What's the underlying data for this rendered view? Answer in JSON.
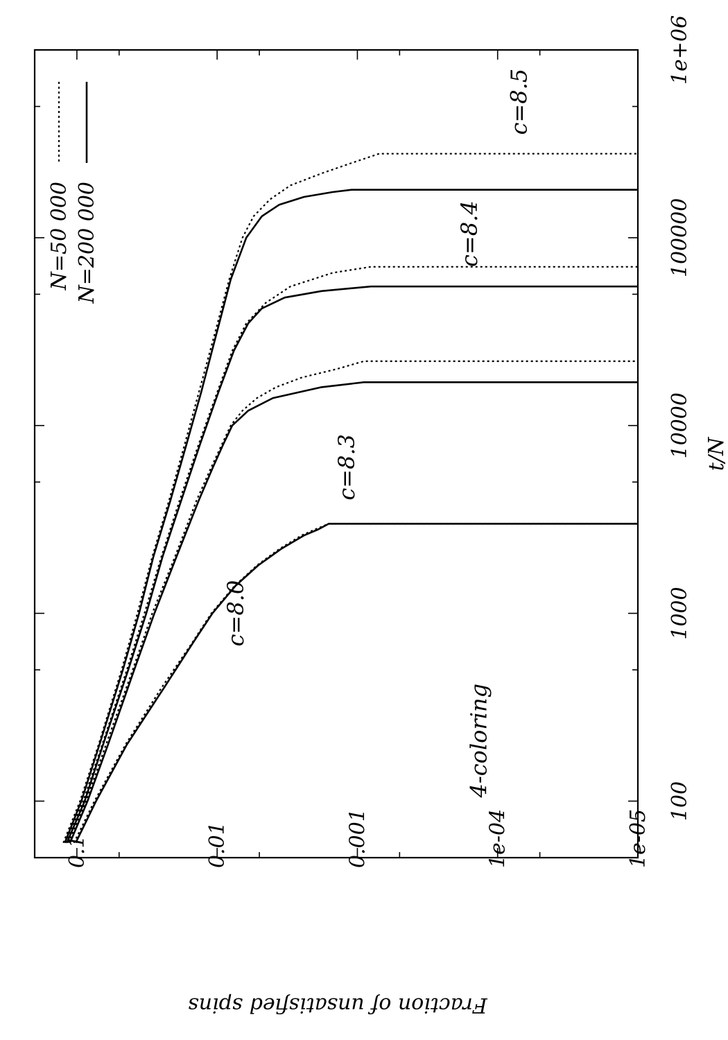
{
  "chart_data": {
    "type": "line",
    "title": "",
    "xlabel": "t/N",
    "ylabel": "Fraction of unsatisfied spins",
    "xscale": "log",
    "yscale": "log",
    "xlim": [
      50,
      1000000
    ],
    "ylim": [
      1e-05,
      0.2
    ],
    "x_ticks": [
      100,
      1000,
      10000,
      100000,
      1000000
    ],
    "x_tick_labels": [
      "100",
      "1000",
      "10000",
      "100000",
      "1e+06"
    ],
    "y_ticks": [
      0.1,
      0.01,
      0.001,
      0.0001,
      1e-05
    ],
    "y_tick_labels": [
      "0.1",
      "0.01",
      "0.001",
      "1e-04",
      "1e-05"
    ],
    "grid": false,
    "legend_position": "top-right",
    "legend": [
      {
        "label": "N=50 000",
        "style": "dotted"
      },
      {
        "label": "N=200 000",
        "style": "solid"
      }
    ],
    "annotations": [
      {
        "text": "4-coloring",
        "x": 210,
        "y": 0.00012
      },
      {
        "text": "c=8.0",
        "x": 1000,
        "y": 0.0065
      },
      {
        "text": "c=8.3",
        "x": 6000,
        "y": 0.00105
      },
      {
        "text": "c=8.4",
        "x": 105000,
        "y": 0.00014
      },
      {
        "text": "c=8.5",
        "x": 530000,
        "y": 6.2e-05
      }
    ],
    "series": [
      {
        "name": "c=8.0, N=50 000",
        "c": "8.0",
        "N": "50 000",
        "style": "dotted",
        "x": [
          60,
          100,
          200,
          400,
          700,
          1000,
          1400,
          1800,
          2200,
          2600,
          2800,
          3000,
          3000
        ],
        "y": [
          0.105,
          0.075,
          0.045,
          0.025,
          0.015,
          0.011,
          0.0075,
          0.0052,
          0.0036,
          0.0025,
          0.002,
          0.0016,
          1e-05
        ]
      },
      {
        "name": "c=8.0, N=200 000",
        "c": "8.0",
        "N": "200 000",
        "style": "solid",
        "x": [
          60,
          100,
          200,
          400,
          700,
          1000,
          1400,
          1800,
          2200,
          2600,
          2800,
          3000,
          3000
        ],
        "y": [
          0.102,
          0.073,
          0.044,
          0.024,
          0.0148,
          0.0108,
          0.0074,
          0.0051,
          0.0035,
          0.0024,
          0.0019,
          0.0016,
          1e-05
        ]
      },
      {
        "name": "c=8.3, N=50 000",
        "c": "8.3",
        "N": "50 000",
        "style": "dotted",
        "x": [
          60,
          100,
          200,
          500,
          1000,
          2000,
          4000,
          6000,
          8000,
          10000,
          12000,
          14000,
          16000,
          18000,
          20000,
          22000,
          22000
        ],
        "y": [
          0.115,
          0.086,
          0.062,
          0.04,
          0.029,
          0.02,
          0.014,
          0.011,
          0.0092,
          0.008,
          0.0066,
          0.0052,
          0.0038,
          0.0025,
          0.0014,
          0.0009,
          1e-05
        ]
      },
      {
        "name": "c=8.3, N=200 000",
        "c": "8.3",
        "N": "200 000",
        "style": "solid",
        "x": [
          60,
          100,
          200,
          500,
          1000,
          2000,
          4000,
          6000,
          8000,
          10000,
          12000,
          14000,
          16000,
          17000,
          17000
        ],
        "y": [
          0.112,
          0.084,
          0.06,
          0.039,
          0.028,
          0.0195,
          0.0135,
          0.0107,
          0.009,
          0.0078,
          0.006,
          0.004,
          0.0018,
          0.0009,
          1e-05
        ]
      },
      {
        "name": "c=8.4, N=50 000",
        "c": "8.4",
        "N": "50 000",
        "style": "dotted",
        "x": [
          60,
          100,
          200,
          500,
          1000,
          2000,
          4000,
          8000,
          15000,
          25000,
          35000,
          45000,
          55000,
          65000,
          70000,
          70000
        ],
        "y": [
          0.12,
          0.09,
          0.066,
          0.044,
          0.033,
          0.025,
          0.0185,
          0.0135,
          0.01,
          0.0078,
          0.0062,
          0.0045,
          0.003,
          0.0015,
          0.0008,
          1e-05
        ]
      },
      {
        "name": "c=8.4, N=200 000",
        "c": "8.4",
        "N": "200 000",
        "style": "solid",
        "x": [
          60,
          100,
          200,
          500,
          1000,
          2000,
          4000,
          8000,
          15000,
          25000,
          35000,
          42000,
          48000,
          52000,
          55000,
          55000
        ],
        "y": [
          0.118,
          0.088,
          0.065,
          0.043,
          0.032,
          0.0245,
          0.018,
          0.0132,
          0.0098,
          0.0076,
          0.006,
          0.0048,
          0.0033,
          0.0018,
          0.0008,
          1e-05
        ]
      },
      {
        "name": "c=8.5, N=50 000",
        "c": "8.5",
        "N": "50 000",
        "style": "dotted",
        "x": [
          60,
          100,
          200,
          500,
          1000,
          2000,
          4000,
          8000,
          15000,
          30000,
          60000,
          100000,
          130000,
          160000,
          190000,
          220000,
          250000,
          280000,
          280000
        ],
        "y": [
          0.125,
          0.095,
          0.07,
          0.048,
          0.037,
          0.029,
          0.022,
          0.017,
          0.0135,
          0.0105,
          0.0082,
          0.0066,
          0.0055,
          0.0042,
          0.003,
          0.0018,
          0.0011,
          0.0007,
          1e-05
        ]
      },
      {
        "name": "c=8.5, N=200 000",
        "c": "8.5",
        "N": "200 000",
        "style": "solid",
        "x": [
          60,
          100,
          200,
          500,
          1000,
          2000,
          4000,
          8000,
          15000,
          30000,
          60000,
          100000,
          130000,
          150000,
          165000,
          175000,
          180000,
          180000
        ],
        "y": [
          0.122,
          0.093,
          0.069,
          0.047,
          0.036,
          0.0285,
          0.0215,
          0.0165,
          0.013,
          0.0102,
          0.008,
          0.0062,
          0.0048,
          0.0036,
          0.0024,
          0.0015,
          0.0011,
          1e-05
        ]
      }
    ]
  }
}
